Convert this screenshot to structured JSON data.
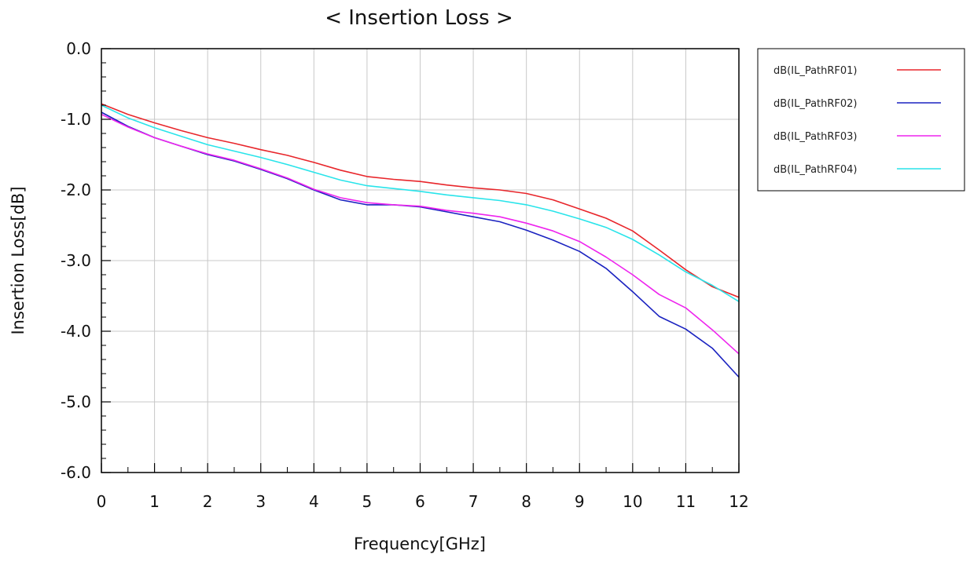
{
  "chart_data": {
    "type": "line",
    "title": "< Insertion Loss >",
    "xlabel": "Frequency[GHz]",
    "ylabel": "Insertion Loss[dB]",
    "xlim": [
      0,
      12
    ],
    "ylim": [
      -6.0,
      0.0
    ],
    "xticks": [
      "0",
      "1",
      "2",
      "3",
      "4",
      "5",
      "6",
      "7",
      "8",
      "9",
      "10",
      "11",
      "12"
    ],
    "yticks": [
      "0.0",
      "-1.0",
      "-2.0",
      "-3.0",
      "-4.0",
      "-5.0",
      "-6.0"
    ],
    "grid": true,
    "legend_position": "right",
    "x": [
      0,
      0.5,
      1,
      1.5,
      2,
      2.5,
      3,
      3.5,
      4,
      4.5,
      5,
      5.5,
      6,
      6.5,
      7,
      7.5,
      8,
      8.5,
      9,
      9.5,
      10,
      10.5,
      11,
      11.5,
      12
    ],
    "series": [
      {
        "name": "dB(IL_PathRF01)",
        "color": "#e8262b",
        "values": [
          -0.78,
          -0.93,
          -1.05,
          -1.16,
          -1.26,
          -1.34,
          -1.43,
          -1.51,
          -1.61,
          -1.72,
          -1.81,
          -1.85,
          -1.88,
          -1.93,
          -1.97,
          -2.0,
          -2.05,
          -2.14,
          -2.27,
          -2.4,
          -2.58,
          -2.85,
          -3.13,
          -3.37,
          -3.52
        ]
      },
      {
        "name": "dB(IL_PathRF02)",
        "color": "#1a22c0",
        "values": [
          -0.9,
          -1.1,
          -1.26,
          -1.38,
          -1.5,
          -1.59,
          -1.71,
          -1.84,
          -2.0,
          -2.14,
          -2.21,
          -2.21,
          -2.24,
          -2.31,
          -2.38,
          -2.45,
          -2.57,
          -2.71,
          -2.87,
          -3.11,
          -3.44,
          -3.79,
          -3.97,
          -4.24,
          -4.65
        ]
      },
      {
        "name": "dB(IL_PathRF03)",
        "color": "#ee24ee",
        "values": [
          -0.93,
          -1.11,
          -1.26,
          -1.38,
          -1.49,
          -1.58,
          -1.7,
          -1.83,
          -1.99,
          -2.11,
          -2.18,
          -2.21,
          -2.23,
          -2.29,
          -2.33,
          -2.38,
          -2.47,
          -2.58,
          -2.73,
          -2.95,
          -3.2,
          -3.48,
          -3.67,
          -3.98,
          -4.32
        ]
      },
      {
        "name": "dB(IL_PathRF04)",
        "color": "#29e4ea",
        "values": [
          -0.8,
          -0.98,
          -1.12,
          -1.24,
          -1.36,
          -1.45,
          -1.54,
          -1.64,
          -1.75,
          -1.86,
          -1.94,
          -1.98,
          -2.02,
          -2.07,
          -2.11,
          -2.15,
          -2.21,
          -2.3,
          -2.41,
          -2.53,
          -2.7,
          -2.92,
          -3.16,
          -3.35,
          -3.58
        ]
      }
    ]
  }
}
